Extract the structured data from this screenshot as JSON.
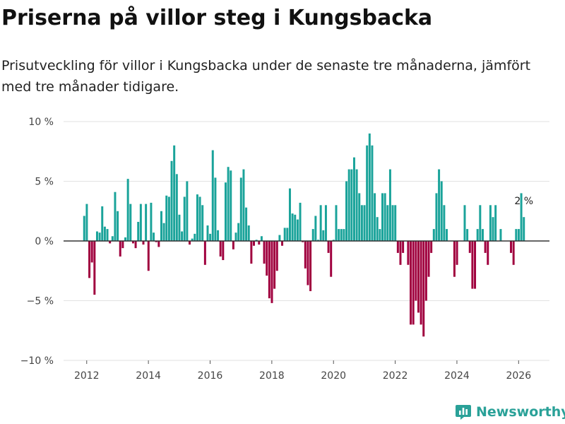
{
  "header": {
    "title": "Priserna på villor steg i Kungsbacka",
    "subtitle": "Prisutveckling för villor i Kungsbacka under de senaste tre månaderna, jämfört med tre månader tidigare."
  },
  "brand": {
    "name": "Newsworthy",
    "icon": "newsworthy-logo-icon"
  },
  "colors": {
    "positive": "#1aa39a",
    "negative": "#a0003e",
    "grid": "#e2e2e2",
    "zero_line": "#333333"
  },
  "chart_data": {
    "type": "bar",
    "title": "Priserna på villor steg i Kungsbacka",
    "xlabel": "",
    "ylabel": "",
    "x_start": 2011.92,
    "x_step": 0.08333,
    "xlim": [
      2011.25,
      2027.0
    ],
    "ylim": [
      -10,
      10
    ],
    "x_ticks": [
      2012,
      2014,
      2016,
      2018,
      2020,
      2022,
      2024,
      2026
    ],
    "x_tick_labels": [
      "2012",
      "2014",
      "2016",
      "2018",
      "2020",
      "2022",
      "2024",
      "2026"
    ],
    "y_ticks": [
      10,
      5,
      0,
      -5,
      -10
    ],
    "y_tick_labels": [
      "10 %",
      "5 %",
      "0 %",
      "−5 %",
      "−10 %"
    ],
    "values": [
      2.1,
      3.1,
      -3.1,
      -1.8,
      -4.5,
      0.8,
      0.7,
      2.9,
      1.2,
      1.0,
      -0.2,
      0.4,
      4.1,
      2.5,
      -1.3,
      -0.6,
      0.3,
      5.2,
      3.1,
      -0.2,
      -0.6,
      1.6,
      3.1,
      -0.3,
      3.1,
      -2.5,
      3.2,
      0.7,
      -0.1,
      -0.5,
      2.5,
      1.5,
      3.8,
      3.7,
      6.7,
      8.0,
      5.6,
      2.2,
      0.8,
      3.7,
      5.0,
      -0.3,
      0.2,
      0.6,
      3.9,
      3.7,
      3.0,
      -2.0,
      1.3,
      0.6,
      7.6,
      5.3,
      0.9,
      -1.3,
      -1.6,
      4.9,
      6.2,
      5.9,
      -0.7,
      0.7,
      1.5,
      5.3,
      6.0,
      2.8,
      1.3,
      -1.9,
      -0.4,
      0.1,
      -0.3,
      0.4,
      -1.9,
      -2.9,
      -4.8,
      -5.2,
      -4.0,
      -2.5,
      0.5,
      -0.4,
      1.1,
      1.1,
      4.4,
      2.3,
      2.2,
      1.8,
      3.2,
      -0.1,
      -2.3,
      -3.7,
      -4.2,
      1.0,
      2.1,
      0.1,
      3.0,
      0.9,
      3.0,
      -1.0,
      -3.0,
      0.1,
      3.0,
      1.0,
      1.0,
      1.0,
      5.0,
      6.0,
      6.0,
      7.0,
      6.0,
      4.0,
      3.0,
      3.0,
      8.0,
      9.0,
      8.0,
      4.0,
      2.0,
      1.0,
      4.0,
      4.0,
      3.0,
      6.0,
      3.0,
      3.0,
      -1.0,
      -2.0,
      -1.0,
      0.0,
      -2.0,
      -7.0,
      -7.0,
      -5.0,
      -6.0,
      -7.0,
      -8.0,
      -5.0,
      -3.0,
      -1.0,
      1.0,
      4.0,
      6.0,
      5.0,
      3.0,
      1.0,
      0.0,
      0.0,
      -3.0,
      -2.0,
      0.0,
      0.0,
      3.0,
      1.0,
      -1.0,
      -4.0,
      -4.0,
      1.0,
      3.0,
      1.0,
      -1.0,
      -2.0,
      3.0,
      2.0,
      3.0,
      0.0,
      1.0,
      0.0,
      0.0,
      0.0,
      -1.0,
      -2.0,
      1.0,
      1.0,
      4.0,
      2.0
    ],
    "annotation": {
      "text": "2 %",
      "index": 171
    }
  }
}
